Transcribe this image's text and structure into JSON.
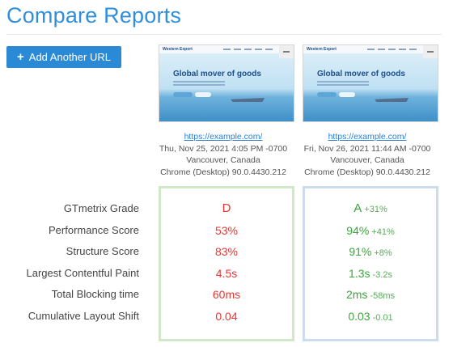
{
  "page": {
    "title": "Compare Reports"
  },
  "toolbar": {
    "add_url_label": "Add Another URL",
    "add_url_icon": "plus-icon"
  },
  "metric_labels": [
    "GTmetrix Grade",
    "Performance Score",
    "Structure Score",
    "Largest Contentful Paint",
    "Total Blocking time",
    "Cumulative Layout Shift"
  ],
  "reports": [
    {
      "screenshot": {
        "logo": "Western Export",
        "headline": "Global mover of goods"
      },
      "url": "https://example.com/",
      "date": "Thu, Nov 25, 2021 4:05 PM -0700",
      "location": "Vancouver, Canada",
      "browser": "Chrome (Desktop) 90.0.4430.212",
      "values": [
        "D",
        "53%",
        "83%",
        "4.5s",
        "60ms",
        "0.04"
      ],
      "deltas": [
        "",
        "",
        "",
        "",
        "",
        ""
      ],
      "color": "#e83535"
    },
    {
      "screenshot": {
        "logo": "Western Export",
        "headline": "Global mover of goods"
      },
      "url": "https://example.com/",
      "date": "Fri, Nov 26, 2021 11:44 AM -0700",
      "location": "Vancouver, Canada",
      "browser": "Chrome (Desktop) 90.0.4430.212",
      "values": [
        "A",
        "94%",
        "91%",
        "1.3s",
        "2ms",
        "0.03"
      ],
      "deltas": [
        "+31%",
        "+41%",
        "+8%",
        "-3.2s",
        "-58ms",
        "-0.01"
      ],
      "color": "#3ca53c"
    }
  ]
}
